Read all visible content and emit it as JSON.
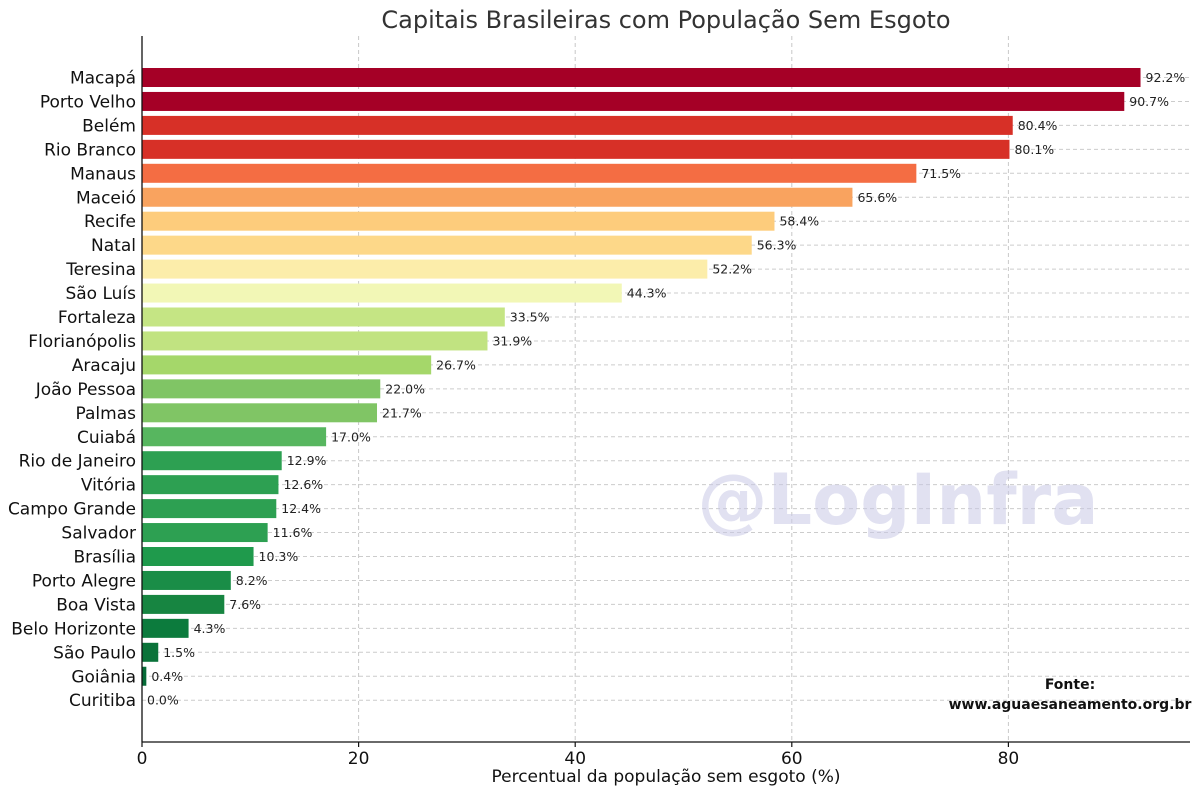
{
  "chart_data": {
    "type": "bar",
    "orientation": "horizontal",
    "title": "Capitais Brasileiras com População Sem Esgoto",
    "xlabel": "Percentual da população sem esgoto (%)",
    "ylabel": "",
    "xlim": [
      0,
      97
    ],
    "xticks": [
      0,
      20,
      40,
      60,
      80
    ],
    "grid": true,
    "categories": [
      "Macapá",
      "Porto Velho",
      "Belém",
      "Rio Branco",
      "Manaus",
      "Maceió",
      "Recife",
      "Natal",
      "Teresina",
      "São Luís",
      "Fortaleza",
      "Florianópolis",
      "Aracaju",
      "João Pessoa",
      "Palmas",
      "Cuiabá",
      "Rio de Janeiro",
      "Vitória",
      "Campo Grande",
      "Salvador",
      "Brasília",
      "Porto Alegre",
      "Boa Vista",
      "Belo Horizonte",
      "São Paulo",
      "Goiânia",
      "Curitiba"
    ],
    "values": [
      92.2,
      90.7,
      80.4,
      80.1,
      71.5,
      65.6,
      58.4,
      56.3,
      52.2,
      44.3,
      33.5,
      31.9,
      26.7,
      22.0,
      21.7,
      17.0,
      12.9,
      12.6,
      12.4,
      11.6,
      10.3,
      8.2,
      7.6,
      4.3,
      1.5,
      0.4,
      0.0
    ],
    "value_labels": [
      "92.2%",
      "90.7%",
      "80.4%",
      "80.1%",
      "71.5%",
      "65.6%",
      "58.4%",
      "56.3%",
      "52.2%",
      "44.3%",
      "33.5%",
      "31.9%",
      "26.7%",
      "22.0%",
      "21.7%",
      "17.0%",
      "12.9%",
      "12.6%",
      "12.4%",
      "11.6%",
      "10.3%",
      "8.2%",
      "7.6%",
      "4.3%",
      "1.5%",
      "0.4%",
      "0.0%"
    ],
    "colors": [
      "#a50026",
      "#a50026",
      "#d73027",
      "#d73027",
      "#f46d43",
      "#f9a35f",
      "#fdcc7c",
      "#fdd889",
      "#fcedaa",
      "#f2f7b6",
      "#c5e584",
      "#c1e381",
      "#a5d76a",
      "#80c565",
      "#80c565",
      "#57b65f",
      "#2da052",
      "#2da052",
      "#2da052",
      "#2da052",
      "#1f9a4c",
      "#1a8d47",
      "#178541",
      "#0c7b3d",
      "#0a7239",
      "#066b37",
      "#006837"
    ],
    "watermark": "@LogInfra",
    "source_lines": [
      "Fonte:",
      "www.aguaesaneamento.org.br"
    ]
  }
}
